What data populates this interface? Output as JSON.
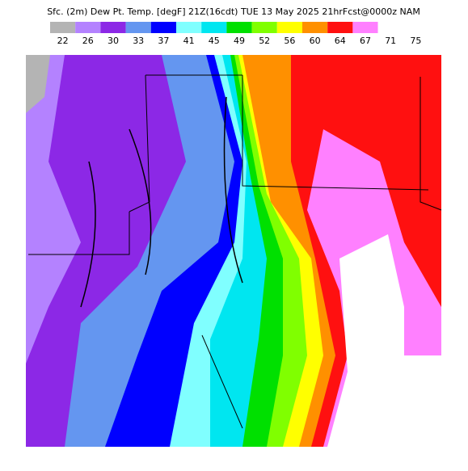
{
  "header": {
    "title": "Sfc. (2m) Dew Pt. Temp. [degF] 21Z(16cdt) TUE 13 May 2025 21hrFcst@0000z NAM"
  },
  "colorbar": [
    {
      "label": "22",
      "color": "#b4b4b4"
    },
    {
      "label": "26",
      "color": "#b482ff"
    },
    {
      "label": "30",
      "color": "#8c28e6"
    },
    {
      "label": "33",
      "color": "#6496f0"
    },
    {
      "label": "37",
      "color": "#0000ff"
    },
    {
      "label": "41",
      "color": "#80ffff"
    },
    {
      "label": "45",
      "color": "#00e6f0"
    },
    {
      "label": "49",
      "color": "#00e000"
    },
    {
      "label": "52",
      "color": "#80ff00"
    },
    {
      "label": "56",
      "color": "#ffff00"
    },
    {
      "label": "60",
      "color": "#ff9000"
    },
    {
      "label": "64",
      "color": "#ff1010"
    },
    {
      "label": "67",
      "color": "#ff80ff"
    },
    {
      "label": "71",
      "color": "#ffffff"
    },
    {
      "label": "75",
      "color": "#ffffff"
    }
  ]
}
